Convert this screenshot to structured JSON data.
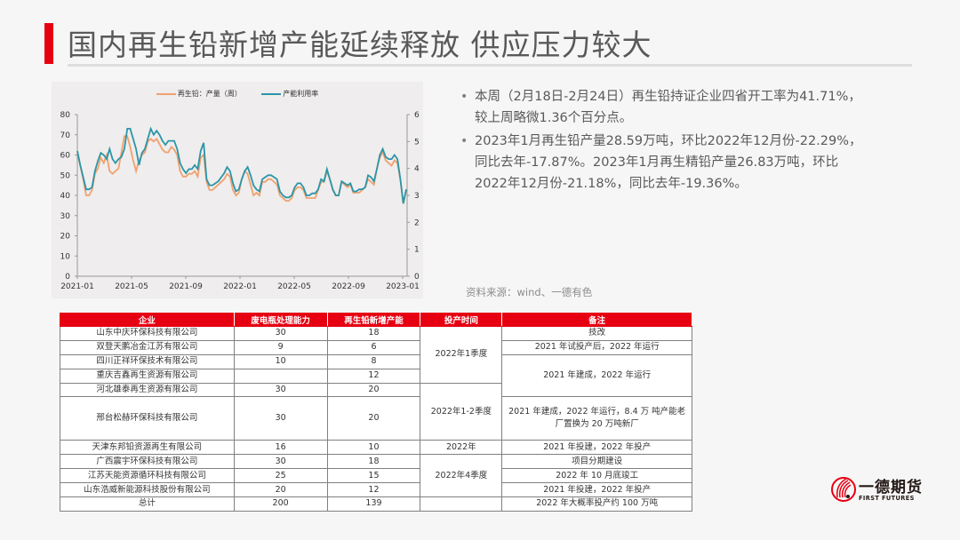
{
  "header": {
    "title": "国内再生铅新增产能延续释放 供应压力较大"
  },
  "chart_data": {
    "type": "line",
    "title": "",
    "legend": [
      "再生铅：产量（周）",
      "产能利用率"
    ],
    "legend_position": "top",
    "xlabel": "",
    "ylabel_left": "",
    "ylabel_right": "",
    "x_ticks": [
      "2021-01",
      "2021-05",
      "2021-09",
      "2022-01",
      "2022-05",
      "2022-09",
      "2023-01"
    ],
    "y_left_ticks": [
      0,
      10,
      20,
      30,
      40,
      50,
      60,
      70,
      80
    ],
    "y_right_ticks": [
      0,
      1,
      2,
      3,
      4,
      5,
      6
    ],
    "ylim_left": [
      0,
      80
    ],
    "ylim_right": [
      0,
      6
    ],
    "grid": false,
    "series": [
      {
        "name": "再生铅：产量（周）",
        "axis": "right",
        "color": "#f0a16e",
        "values": [
          4.6,
          4.1,
          3.6,
          3.0,
          3.0,
          3.2,
          3.8,
          4.0,
          4.4,
          4.2,
          4.5,
          3.9,
          3.8,
          3.9,
          4.0,
          4.6,
          5.2,
          5.2,
          4.8,
          4.3,
          3.9,
          4.3,
          4.5,
          4.6,
          5.0,
          5.1,
          5.0,
          5.1,
          4.9,
          4.7,
          4.6,
          4.6,
          4.8,
          4.7,
          4.5,
          3.9,
          3.7,
          3.7,
          3.8,
          3.8,
          3.9,
          3.7,
          4.4,
          4.5,
          3.5,
          3.2,
          3.2,
          3.3,
          3.4,
          3.5,
          3.6,
          3.8,
          3.7,
          3.2,
          3.0,
          3.1,
          3.6,
          3.9,
          3.8,
          3.4,
          3.0,
          3.1,
          3.0,
          3.5,
          3.5,
          3.6,
          3.6,
          3.5,
          3.4,
          3.0,
          2.9,
          2.8,
          2.8,
          2.9,
          3.2,
          3.3,
          3.3,
          3.2,
          2.9,
          2.9,
          2.9,
          2.9,
          3.2,
          3.5,
          3.5,
          3.9,
          3.6,
          3.2,
          3.0,
          3.0,
          3.5,
          3.4,
          3.3,
          3.4,
          3.1,
          3.1,
          3.1,
          3.2,
          3.3,
          3.6,
          3.5,
          3.4,
          4.0,
          4.4,
          4.6,
          4.3,
          4.2,
          4.1,
          4.3,
          4.2,
          3.6,
          2.7,
          3.2
        ]
      },
      {
        "name": "产能利用率",
        "axis": "left",
        "color": "#2a95a8",
        "values": [
          62,
          55,
          49,
          43,
          43,
          44,
          52,
          57,
          61,
          60,
          58,
          63,
          58,
          56,
          58,
          59,
          63,
          73,
          73,
          68,
          63,
          55,
          61,
          63,
          68,
          73,
          70,
          72,
          70,
          67,
          65,
          67,
          67,
          67,
          63,
          56,
          53,
          51,
          53,
          53,
          55,
          53,
          62,
          66,
          48,
          45,
          45,
          46,
          47,
          49,
          51,
          54,
          52,
          46,
          42,
          43,
          48,
          52,
          54,
          50,
          45,
          43,
          42,
          48,
          49,
          50,
          50,
          49,
          48,
          42,
          40,
          39,
          39,
          40,
          44,
          46,
          46,
          44,
          40,
          40,
          41,
          41,
          43,
          48,
          47,
          53,
          48,
          43,
          40,
          40,
          47,
          46,
          45,
          46,
          42,
          42,
          43,
          43,
          44,
          50,
          49,
          47,
          53,
          60,
          63,
          59,
          58,
          58,
          60,
          58,
          48,
          36,
          43
        ]
      }
    ]
  },
  "bullets": [
    {
      "line1": "本周（2月18日-2月24日）再生铅持证企业四省开工率为41.71%，",
      "line2": "较上周略微1.36个百分点。"
    },
    {
      "line1": "2023年1月再生铅产量28.59万吨，环比2022年12月份-22.29%，",
      "line2": "同比去年-17.87%。2023年1月再生精铅产量26.83万吨，环比",
      "line3": "2022年12月份-21.18%，同比去年-19.36%。"
    }
  ],
  "source": "资料来源：wind、一德有色",
  "table": {
    "headers": [
      "企业",
      "废电瓶处理能力",
      "再生铅新增产能",
      "投产时间",
      "备注"
    ],
    "rows": [
      {
        "company": "山东中庆环保科技有限公司",
        "capacity": "30",
        "new_capacity": "18"
      },
      {
        "company": "双登天鹏冶金江苏有限公司",
        "capacity": "9",
        "new_capacity": "6"
      },
      {
        "company": "四川正祥环保技术有限公司",
        "capacity": "10",
        "new_capacity": "8"
      },
      {
        "company": "重庆吉鑫再生资源有限公司",
        "capacity": "",
        "new_capacity": "12"
      },
      {
        "company": "河北雄泰再生资源有限公司",
        "capacity": "30",
        "new_capacity": "20"
      },
      {
        "company": "邢台松赫环保科技有限公司",
        "capacity": "30",
        "new_capacity": "20"
      },
      {
        "company": "天津东邦铅资源再生有限公司",
        "capacity": "16",
        "new_capacity": "10"
      },
      {
        "company": "广西震宇环保科技有限公司",
        "capacity": "30",
        "new_capacity": "18"
      },
      {
        "company": "江苏天能资源循环科技有限公司",
        "capacity": "25",
        "new_capacity": "15"
      },
      {
        "company": "山东浩威新能源科技股份有限公司",
        "capacity": "20",
        "new_capacity": "12"
      },
      {
        "company": "总计",
        "capacity": "200",
        "new_capacity": "139"
      }
    ],
    "times": {
      "q1": "2022年1季度",
      "q12": "2022年1-2季度",
      "y2022": "2022年",
      "q4": "2022年4季度",
      "total": ""
    },
    "notes": {
      "n1": "技改",
      "n2": "2021 年试投产后，2022 年运行",
      "n3": "2021 年建成，2022 年运行",
      "n4_line1": "2021 年建成，2022 年运行，8.4 万 吨产能老",
      "n4_line2": "厂置换为 20 万吨新厂",
      "n5": "2021 年投建，2022 年投产",
      "n6": "项目分期建设",
      "n7": "2022 年 10 月底竣工",
      "n8": "2021 年投建，2022 年投产",
      "n9": "2022 年大概率投产约 100 万吨"
    }
  },
  "logo": {
    "name_cn": "一德期货",
    "name_en": "FIRST FUTURES"
  },
  "colors": {
    "accent": "#e60012",
    "production_line": "#f0a16e",
    "utilization_line": "#2a95a8"
  }
}
